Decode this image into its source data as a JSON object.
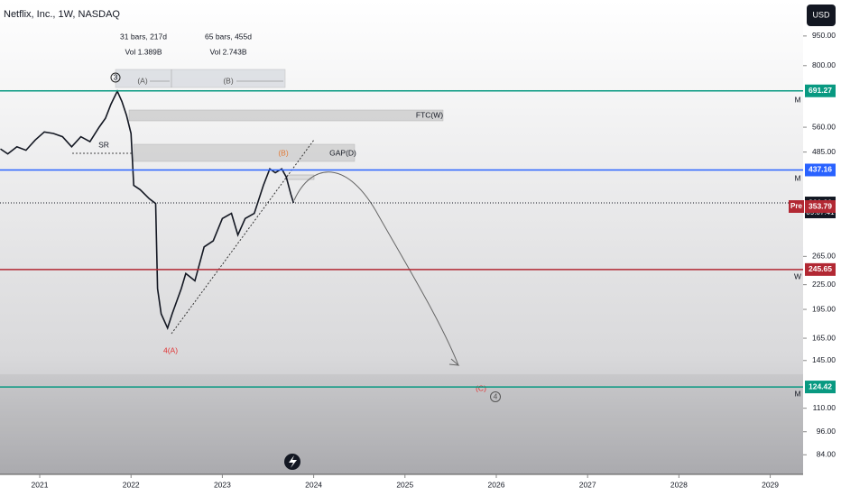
{
  "chart_data": {
    "type": "line",
    "title": "Netflix, Inc., 1W, NASDAQ",
    "currency": "USD",
    "countdown": "09:07:41",
    "pre_label": "Pre",
    "log_scale": true,
    "color": "#131722",
    "x": [
      2020.57,
      2020.65,
      2020.75,
      2020.85,
      2020.95,
      2021.05,
      2021.15,
      2021.25,
      2021.35,
      2021.45,
      2021.55,
      2021.65,
      2021.72,
      2021.78,
      2021.85,
      2021.9,
      2021.95,
      2022.0,
      2022.03,
      2022.1,
      2022.2,
      2022.27,
      2022.29,
      2022.33,
      2022.4,
      2022.45,
      2022.55,
      2022.6,
      2022.7,
      2022.8,
      2022.9,
      2023.0,
      2023.1,
      2023.17,
      2023.25,
      2023.35,
      2023.45,
      2023.52,
      2023.58,
      2023.65,
      2023.7,
      2023.75,
      2023.78
    ],
    "values": [
      494,
      480,
      500,
      490,
      520,
      545,
      540,
      530,
      500,
      530,
      515,
      560,
      590,
      640,
      690,
      650,
      600,
      540,
      400,
      390,
      370,
      360,
      220,
      190,
      175,
      190,
      220,
      240,
      230,
      280,
      290,
      330,
      340,
      300,
      330,
      340,
      400,
      440,
      430,
      440,
      420,
      380,
      361.2
    ],
    "xlim": [
      2020.565,
      2029.36
    ],
    "xticks": [
      2021,
      2022,
      2023,
      2024,
      2025,
      2026,
      2027,
      2028,
      2029
    ],
    "ylim": [
      75,
      1170
    ],
    "yticks": [
      {
        "value": 950,
        "label": "950.00"
      },
      {
        "value": 800,
        "label": "800.00"
      },
      {
        "value": 560,
        "label": "560.00"
      },
      {
        "value": 485,
        "label": "485.00"
      },
      {
        "value": 265,
        "label": "265.00"
      },
      {
        "value": 225,
        "label": "225.00"
      },
      {
        "value": 195,
        "label": "195.00"
      },
      {
        "value": 165,
        "label": "165.00"
      },
      {
        "value": 145,
        "label": "145.00"
      },
      {
        "value": 110,
        "label": "110.00"
      },
      {
        "value": 96,
        "label": "96.00"
      },
      {
        "value": 84,
        "label": "84.00"
      }
    ],
    "price_lines": [
      {
        "value": 691.27,
        "color": "#089981",
        "style": "solid"
      },
      {
        "value": 437.16,
        "color": "#2962ff",
        "style": "solid"
      },
      {
        "value": {
          "value": 361.2,
          "label": "361.20"
        },
        "color": "#131722",
        "style": "dotted"
      },
      {
        "value": 353.79,
        "color": "#b22833",
        "style": "none"
      },
      {
        "value": 245.65,
        "color": "#b22833",
        "style": "solid"
      },
      {
        "value": 124.42,
        "color": "#089981",
        "style": "solid"
      }
    ],
    "annotations": [
      "31 bars, 217d",
      "Vol 1.389B",
      "65 bars, 455d",
      "Vol 2.743B",
      "(A)",
      "(B)",
      "FTC(W)",
      "GAP(D)",
      "SR",
      "(B)",
      "4(A)",
      "(C)",
      "3",
      "4",
      "M",
      "M",
      "W",
      "M"
    ]
  }
}
